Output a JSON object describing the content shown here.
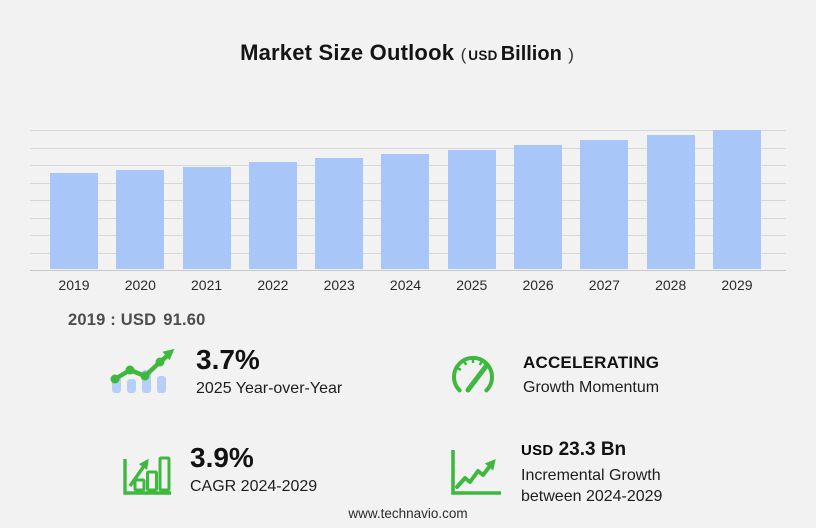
{
  "title": {
    "main": "Market Size Outlook",
    "open_paren": "(",
    "currency": "USD",
    "unit": "Billion",
    "close_paren": ")"
  },
  "chart_data": {
    "type": "bar",
    "title": "Market Size Outlook (USD Billion)",
    "categories": [
      "2019",
      "2020",
      "2021",
      "2022",
      "2023",
      "2024",
      "2025",
      "2026",
      "2027",
      "2028",
      "2029"
    ],
    "values": [
      91.6,
      94.6,
      98.1,
      102.3,
      106.1,
      110.0,
      114.1,
      118.5,
      123.2,
      128.2,
      133.3
    ],
    "ylabel": "USD Billion",
    "xlabel": "",
    "ylim": [
      0,
      134
    ],
    "grid": true,
    "legend": false,
    "bar_color": "#a9c6f9"
  },
  "annotation_2019": {
    "label": "2019 : USD",
    "value": "91.60"
  },
  "stats": {
    "yoy": {
      "icon": "bars-trend-icon",
      "value": "3.7%",
      "label": "2025 Year-over-Year"
    },
    "momentum": {
      "icon": "speedometer-icon",
      "value": "ACCELERATING",
      "label": "Growth Momentum"
    },
    "cagr": {
      "icon": "growth-bars-icon",
      "value": "3.9%",
      "label": "CAGR 2024-2029"
    },
    "incremental": {
      "icon": "trend-axis-icon",
      "currency": "USD",
      "value": "23.3 Bn",
      "label_line1": "Incremental Growth",
      "label_line2": "between 2024-2029"
    }
  },
  "footer": {
    "website": "www.technavio.com"
  },
  "colors": {
    "background": "#f2f2f3",
    "bar": "#a9c6f9",
    "icon_bar_blue": "#b7cff7",
    "green": "#3eb83e",
    "gridline": "#d7d7da",
    "title_text": "#151515",
    "annotation_text": "#4d4d4d"
  }
}
